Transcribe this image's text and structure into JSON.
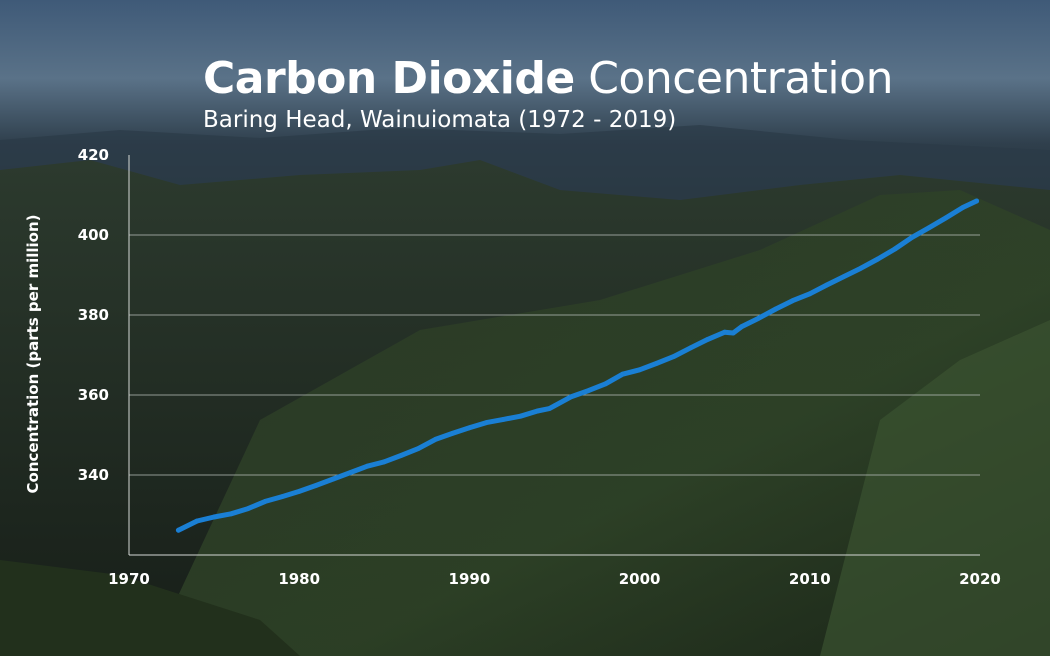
{
  "title_bold": "Carbon Dioxide",
  "title_light": "Concentration",
  "subtitle": "Baring Head, Wainuiomata (1972 - 2019)",
  "colors": {
    "series": "#1a7fd4",
    "grid": "#b9bfbb",
    "axis": "#d4d8d5",
    "text": "#ffffff"
  },
  "chart_data": {
    "type": "line",
    "title": "Carbon Dioxide Concentration",
    "subtitle": "Baring Head, Wainuiomata (1972 - 2019)",
    "xlabel": "",
    "ylabel": "Concentration (parts per million)",
    "xlim": [
      1970,
      2020
    ],
    "ylim": [
      320,
      420
    ],
    "xticks": [
      1970,
      1980,
      1990,
      2000,
      2010,
      2020
    ],
    "yticks": [
      340,
      360,
      380,
      400,
      420
    ],
    "grid": true,
    "legend": "none",
    "series": [
      {
        "name": "",
        "x": [
          1972.9,
          1974,
          1975,
          1976,
          1977,
          1978,
          1979,
          1980,
          1981,
          1982,
          1983,
          1984,
          1985,
          1986,
          1987,
          1988,
          1989,
          1990,
          1991,
          1992,
          1993,
          1994,
          1994.7,
          1995,
          1996,
          1997,
          1998,
          1999,
          2000,
          2001,
          2002,
          2003,
          2004,
          2005,
          2005.5,
          2006,
          2007,
          2008,
          2009,
          2010,
          2011,
          2012,
          2013,
          2014,
          2015,
          2016,
          2017,
          2018,
          2019,
          2019.8
        ],
        "y": [
          326.2,
          328.5,
          329.5,
          330.3,
          331.6,
          333.4,
          334.6,
          335.9,
          337.4,
          339.0,
          340.6,
          342.2,
          343.3,
          344.9,
          346.6,
          348.9,
          350.4,
          351.8,
          353.1,
          353.9,
          354.7,
          356.0,
          356.6,
          357.3,
          359.6,
          361.1,
          362.8,
          365.2,
          366.3,
          367.9,
          369.6,
          371.8,
          373.9,
          375.7,
          375.5,
          377.1,
          379.2,
          381.5,
          383.6,
          385.3,
          387.5,
          389.6,
          391.7,
          394.0,
          396.5,
          399.4,
          401.8,
          404.3,
          406.9,
          408.5
        ]
      }
    ]
  }
}
